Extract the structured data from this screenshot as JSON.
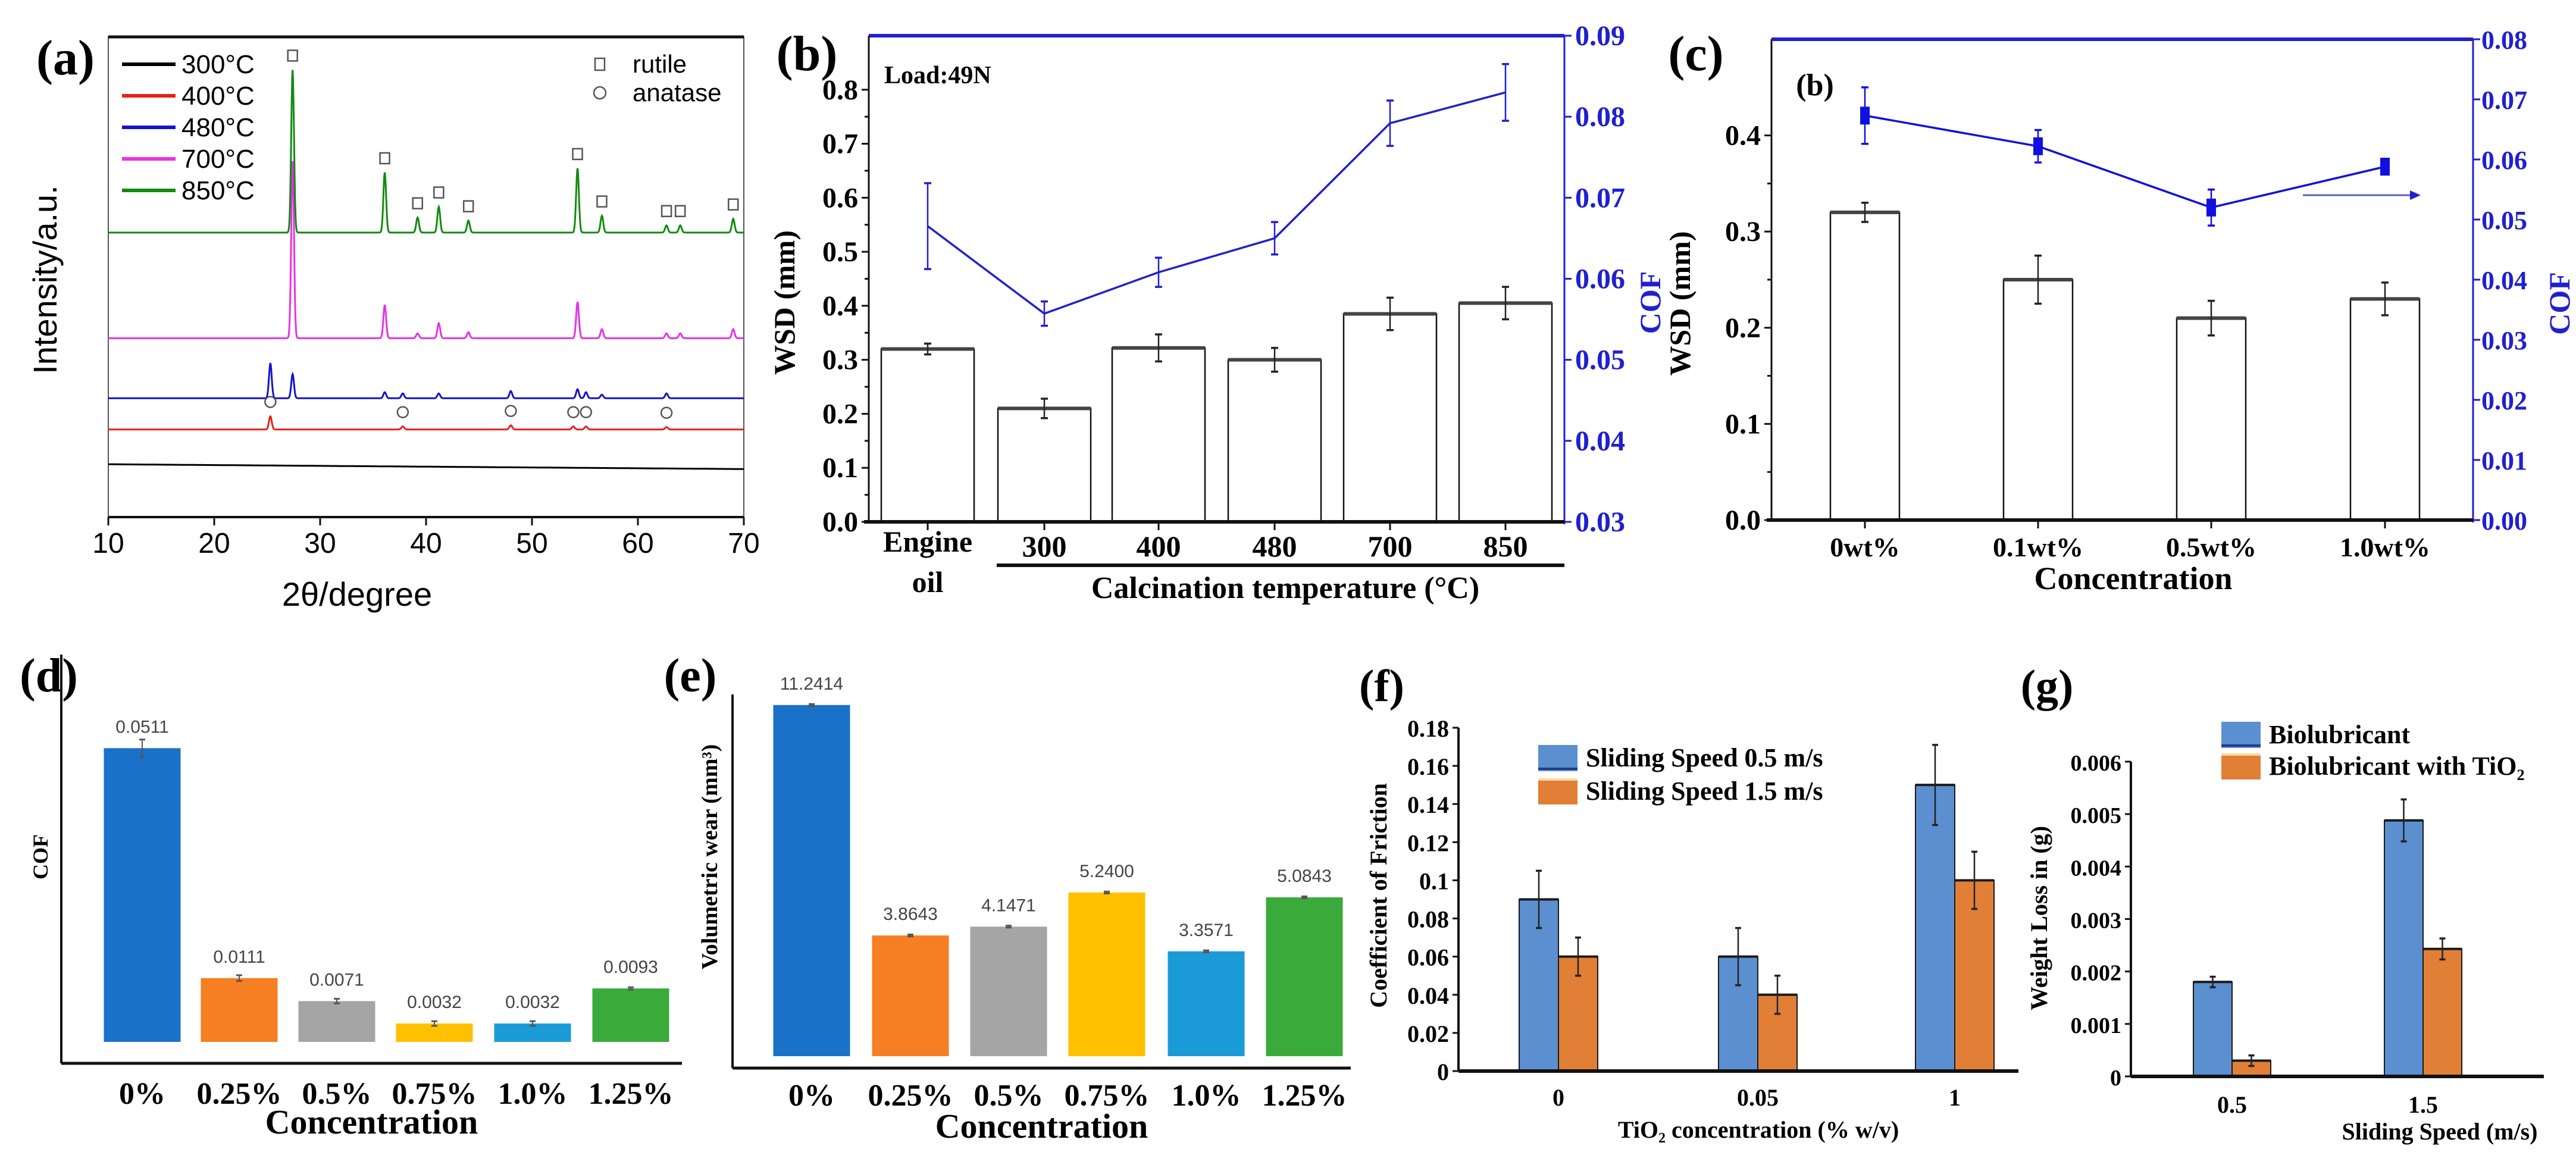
{
  "chart_data": [
    {
      "panel": "(a)",
      "type": "line",
      "xlabel": "2θ/degree",
      "ylabel": "Intensity/a.u.",
      "xlim": [
        10,
        70
      ],
      "xticks": [
        10,
        20,
        30,
        40,
        50,
        60,
        70
      ],
      "ylim": [
        0,
        800
      ],
      "series": [
        {
          "name": "300°C",
          "color": "#000000",
          "offset": 88,
          "slope": -8,
          "peaks": []
        },
        {
          "name": "400°C",
          "color": "#e8201c",
          "offset": 146,
          "peaks": [
            [
              25.3,
              22
            ],
            [
              37.8,
              5
            ],
            [
              48.0,
              7
            ],
            [
              53.9,
              5
            ],
            [
              55.1,
              5
            ],
            [
              62.7,
              4
            ]
          ]
        },
        {
          "name": "480°C",
          "color": "#1414c8",
          "offset": 198,
          "peaks": [
            [
              25.3,
              58
            ],
            [
              27.4,
              40
            ],
            [
              36.1,
              10
            ],
            [
              37.8,
              8
            ],
            [
              41.2,
              8
            ],
            [
              48.0,
              12
            ],
            [
              54.3,
              15
            ],
            [
              55.1,
              10
            ],
            [
              56.6,
              6
            ],
            [
              62.7,
              8
            ]
          ]
        },
        {
          "name": "700°C",
          "color": "#e632e6",
          "offset": 298,
          "peaks": [
            [
              27.4,
              295
            ],
            [
              36.1,
              55
            ],
            [
              39.2,
              8
            ],
            [
              41.2,
              25
            ],
            [
              44.0,
              10
            ],
            [
              54.3,
              60
            ],
            [
              56.6,
              15
            ],
            [
              62.7,
              8
            ],
            [
              64.0,
              8
            ],
            [
              69.0,
              15
            ]
          ]
        },
        {
          "name": "850°C",
          "color": "#138a13",
          "offset": 474,
          "peaks": [
            [
              27.4,
              271
            ],
            [
              36.1,
              100
            ],
            [
              39.2,
              25
            ],
            [
              41.2,
              43
            ],
            [
              44.0,
              20
            ],
            [
              54.3,
              107
            ],
            [
              56.6,
              28
            ],
            [
              62.7,
              12
            ],
            [
              64.0,
              12
            ],
            [
              69.0,
              23
            ]
          ]
        }
      ],
      "phase_markers": [
        {
          "name": "rutile",
          "symbol": "square",
          "on_series": "850°C",
          "positions": [
            27.4,
            36.1,
            39.2,
            41.2,
            44.0,
            54.3,
            56.6,
            62.7,
            64.0,
            69.0
          ]
        },
        {
          "name": "anatase",
          "symbol": "circle",
          "on_series": "400°C",
          "positions": [
            25.3,
            37.8,
            48.0,
            53.9,
            55.1,
            62.7
          ]
        }
      ]
    },
    {
      "panel": "(b)",
      "type": "bar+line",
      "annotation": "Load:49N",
      "categories": [
        "Engine oil",
        "300",
        "400",
        "480",
        "700",
        "850"
      ],
      "category_group_label": "Calcination temperature (°C)",
      "ylabel": "WSD (mm)",
      "y2label": "COF",
      "ylim": [
        0,
        0.9
      ],
      "yticks": [
        "0.0",
        "0.1",
        "0.2",
        "0.3",
        "0.4",
        "0.5",
        "0.6",
        "0.7",
        "0.8"
      ],
      "y2lim": [
        0.03,
        0.09
      ],
      "y2ticks": [
        "0.03",
        "0.04",
        "0.05",
        "0.06",
        "0.07",
        "0.08",
        "0.09"
      ],
      "bars": {
        "name": "WSD",
        "values": [
          0.32,
          0.21,
          0.322,
          0.3,
          0.385,
          0.405
        ],
        "errors": [
          0.01,
          0.018,
          0.025,
          0.022,
          0.03,
          0.03
        ]
      },
      "line": {
        "name": "COF",
        "color": "#2020d0",
        "values": [
          0.0665,
          0.0557,
          0.0608,
          0.065,
          0.0792,
          0.083
        ],
        "errors": [
          0.0053,
          0.0015,
          0.0018,
          0.002,
          0.0028,
          0.0035
        ]
      }
    },
    {
      "panel": "(c)",
      "type": "bar+line",
      "inner_label": "(b)",
      "categories": [
        "0wt%",
        "0.1wt%",
        "0.5wt%",
        "1.0wt%"
      ],
      "xlabel": "Concentration",
      "ylabel": "WSD (mm)",
      "y2label": "COF",
      "ylim": [
        0,
        0.5
      ],
      "yticks": [
        "0.0",
        "0.1",
        "0.2",
        "0.3",
        "0.4"
      ],
      "y2lim": [
        0,
        0.08
      ],
      "y2ticks": [
        "0.00",
        "0.01",
        "0.02",
        "0.03",
        "0.04",
        "0.05",
        "0.06",
        "0.07",
        "0.08"
      ],
      "bars": {
        "name": "WSD",
        "values": [
          0.32,
          0.25,
          0.21,
          0.23
        ],
        "errors": [
          0.01,
          0.025,
          0.018,
          0.017
        ]
      },
      "line": {
        "name": "COF",
        "color": "#1010e0",
        "values": [
          0.0673,
          0.0622,
          0.052,
          0.0588
        ],
        "errors": [
          0.0047,
          0.0027,
          0.003,
          0.0013
        ]
      }
    },
    {
      "panel": "(d)",
      "type": "bar",
      "categories": [
        "0%",
        "0.25%",
        "0.5%",
        "0.75%",
        "1.0%",
        "1.25%"
      ],
      "values": [
        0.0511,
        0.0111,
        0.0071,
        0.0032,
        0.0032,
        0.0093
      ],
      "data_labels": [
        "0.0511",
        "0.0111",
        "0.0071",
        "0.0032",
        "0.0032",
        "0.0093"
      ],
      "errors": [
        0.0015,
        0.0005,
        0.0004,
        0.0004,
        0.0004,
        0.0002
      ],
      "colors": [
        "#1a72c8",
        "#f57f22",
        "#a5a5a5",
        "#ffc000",
        "#1b9ad8",
        "#3aaa3a"
      ],
      "xlabel": "Concentration",
      "ylabel": "COF",
      "ylim": [
        0,
        0.056
      ]
    },
    {
      "panel": "(e)",
      "type": "bar",
      "categories": [
        "0%",
        "0.25%",
        "0.5%",
        "0.75%",
        "1.0%",
        "1.25%"
      ],
      "values": [
        11.2414,
        3.8643,
        4.1471,
        5.24,
        3.3571,
        5.0843
      ],
      "data_labels": [
        "11.2414",
        "3.8643",
        "4.1471",
        "5.2400",
        "3.3571",
        "5.0843"
      ],
      "errors": [
        0.03,
        0.03,
        0.03,
        0.03,
        0.03,
        0.03
      ],
      "colors": [
        "#1a72c8",
        "#f57f22",
        "#a5a5a5",
        "#ffc000",
        "#1b9ad8",
        "#3aaa3a"
      ],
      "xlabel": "Concentration",
      "ylabel": "Volumetric wear (mm³)",
      "ylim": [
        0,
        11.6
      ]
    },
    {
      "panel": "(f)",
      "type": "bar",
      "categories": [
        "0",
        "0.05",
        "1"
      ],
      "xlabel": "TiO₂ concentration (% w/v)",
      "ylabel": "Coefficient of Friction",
      "ylim": [
        0,
        0.18
      ],
      "yticks": [
        "0",
        "0.02",
        "0.04",
        "0.06",
        "0.08",
        "0.1",
        "0.12",
        "0.14",
        "0.16",
        "0.18"
      ],
      "legend_position": "top-left",
      "series": [
        {
          "name": "Sliding Speed  0.5 m/s",
          "color": "#5b8fd0",
          "values": [
            0.09,
            0.06,
            0.15
          ],
          "errors": [
            0.015,
            0.015,
            0.021
          ]
        },
        {
          "name": "Sliding Speed  1.5 m/s",
          "color": "#e07f35",
          "values": [
            0.06,
            0.04,
            0.1
          ],
          "errors": [
            0.01,
            0.01,
            0.015
          ]
        }
      ]
    },
    {
      "panel": "(g)",
      "type": "bar",
      "categories": [
        "0.5",
        "1.5"
      ],
      "xlabel": "Sliding Speed (m/s)",
      "ylabel": "Weight Loss in (g)",
      "ylim": [
        0,
        0.006
      ],
      "yticks": [
        "0",
        "0.001",
        "0.002",
        "0.003",
        "0.004",
        "0.005",
        "0.006"
      ],
      "legend_position": "top-right",
      "series": [
        {
          "name": "Biolubricant",
          "color": "#5b8fd0",
          "values": [
            0.0018,
            0.00488
          ],
          "errors": [
            0.0001,
            0.0004
          ]
        },
        {
          "name": "Biolubricant with TiO₂",
          "color": "#e07f35",
          "values": [
            0.0003,
            0.00243
          ],
          "errors": [
            0.0001,
            0.0002
          ]
        }
      ]
    }
  ]
}
